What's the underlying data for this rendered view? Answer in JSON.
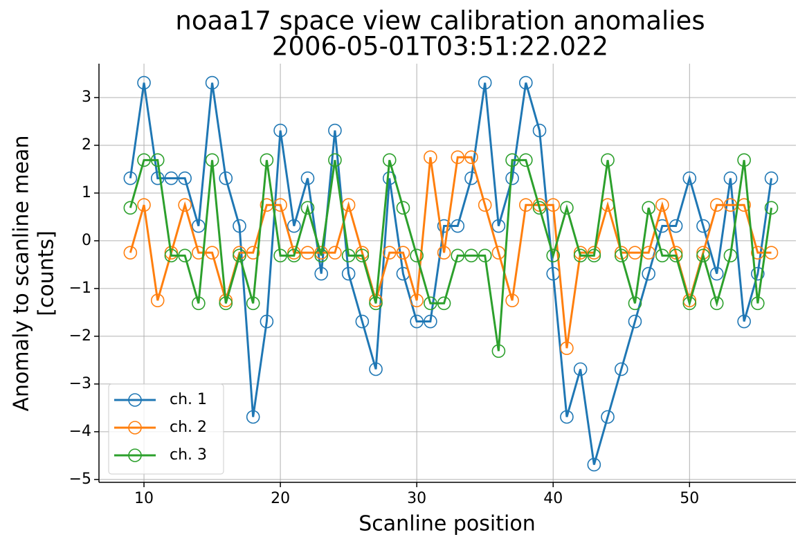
{
  "chart_data": {
    "type": "line",
    "title": "noaa17 space view calibration anomalies",
    "subtitle": "2006-05-01T03:51:22.022",
    "xlabel": "Scanline position",
    "ylabel": [
      "Anomaly to scanline mean",
      "[counts]"
    ],
    "x": [
      9,
      10,
      11,
      12,
      13,
      14,
      15,
      16,
      17,
      18,
      19,
      20,
      21,
      22,
      23,
      24,
      25,
      26,
      27,
      28,
      29,
      30,
      31,
      32,
      33,
      34,
      35,
      36,
      37,
      38,
      39,
      40,
      41,
      42,
      43,
      44,
      45,
      46,
      47,
      48,
      49,
      50,
      51,
      52,
      53,
      54,
      55,
      56
    ],
    "series": [
      {
        "name": "ch. 1",
        "color": "#1f77b4",
        "values": [
          1.31,
          3.31,
          1.31,
          1.31,
          1.31,
          0.31,
          3.31,
          1.31,
          0.31,
          -3.69,
          -1.69,
          2.31,
          0.31,
          1.31,
          -0.69,
          2.31,
          -0.69,
          -1.69,
          -2.69,
          1.31,
          -0.69,
          -1.69,
          -1.69,
          0.31,
          0.31,
          1.31,
          3.31,
          0.31,
          1.31,
          3.31,
          2.31,
          -0.69,
          -3.69,
          -2.69,
          -4.69,
          -3.69,
          -2.69,
          -1.69,
          -0.69,
          0.31,
          0.31,
          1.31,
          0.31,
          -0.69,
          1.31,
          -1.69,
          -0.69,
          1.31
        ]
      },
      {
        "name": "ch. 2",
        "color": "#ff7f0e",
        "values": [
          -0.25,
          0.75,
          -1.25,
          -0.25,
          0.75,
          -0.25,
          -0.25,
          -1.25,
          -0.25,
          -0.25,
          0.75,
          0.75,
          -0.25,
          -0.25,
          -0.25,
          -0.25,
          0.75,
          -0.25,
          -1.25,
          -0.25,
          -0.25,
          -1.25,
          1.75,
          -0.25,
          1.75,
          1.75,
          0.75,
          -0.25,
          -1.25,
          0.75,
          0.75,
          0.75,
          -2.25,
          -0.25,
          -0.25,
          0.75,
          -0.25,
          -0.25,
          -0.25,
          0.75,
          -0.25,
          -1.25,
          -0.25,
          0.75,
          0.75,
          0.75,
          -0.25,
          -0.25
        ]
      },
      {
        "name": "ch. 3",
        "color": "#2ca02c",
        "values": [
          0.69,
          1.69,
          1.69,
          -0.31,
          -0.31,
          -1.31,
          1.69,
          -1.31,
          -0.31,
          -1.31,
          1.69,
          -0.31,
          -0.31,
          0.69,
          -0.31,
          1.69,
          -0.31,
          -0.31,
          -1.31,
          1.69,
          0.69,
          -0.31,
          -1.31,
          -1.31,
          -0.31,
          -0.31,
          -0.31,
          -2.31,
          1.69,
          1.69,
          0.69,
          -0.31,
          0.69,
          -0.31,
          -0.31,
          1.69,
          -0.31,
          -1.31,
          0.69,
          -0.31,
          -0.31,
          -1.31,
          -0.31,
          -1.31,
          -0.31,
          1.69,
          -1.31,
          0.69
        ]
      }
    ],
    "xlim": [
      6.7,
      57.8
    ],
    "ylim": [
      -5.06,
      3.71
    ],
    "xticks": [
      10,
      20,
      30,
      40,
      50
    ],
    "yticks": [
      {
        "value": -5,
        "label": "−5"
      },
      {
        "value": -4,
        "label": "−4"
      },
      {
        "value": -3,
        "label": "−3"
      },
      {
        "value": -2,
        "label": "−2"
      },
      {
        "value": -1,
        "label": "−1"
      },
      0,
      1,
      2,
      3
    ],
    "grid": true,
    "legend": "lower left"
  }
}
